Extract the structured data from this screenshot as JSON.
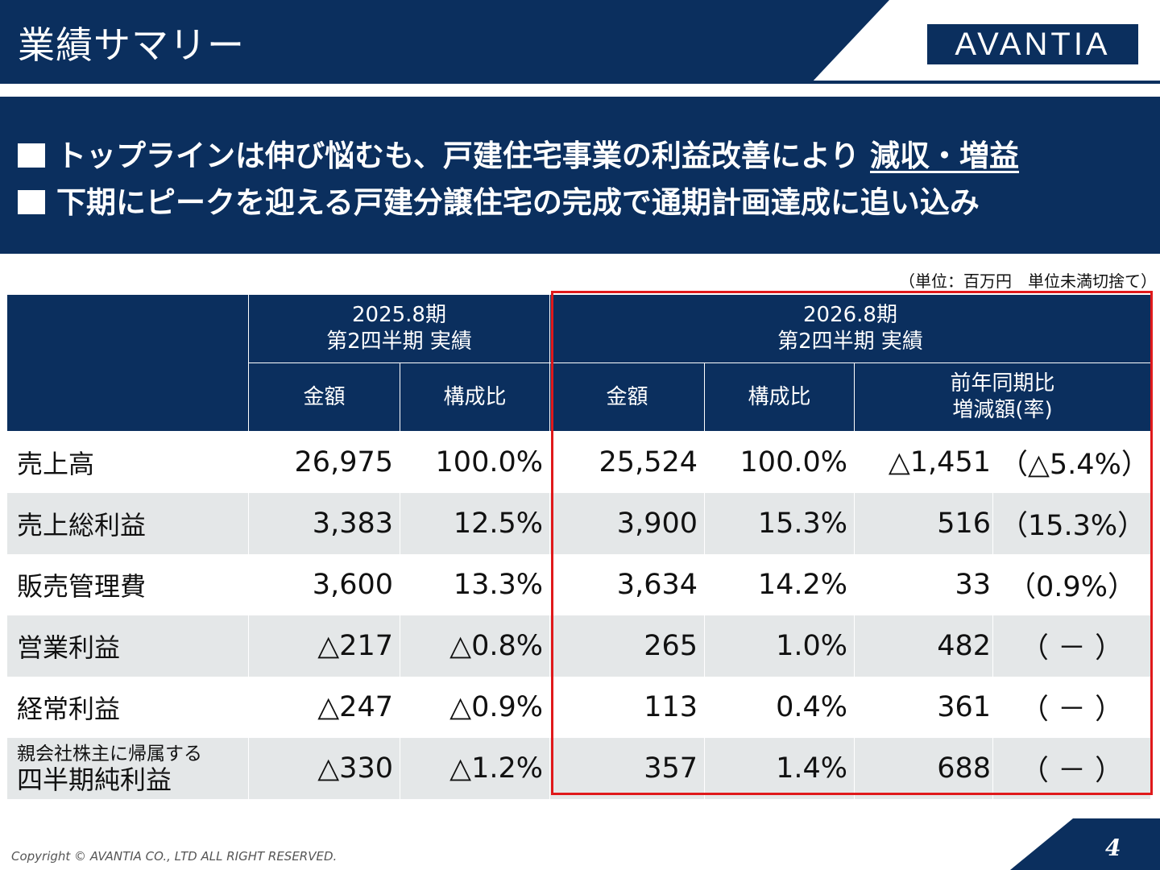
{
  "header": {
    "title": "業績サマリー",
    "logo_text": "AVANTIA",
    "brand_color": "#0b2f5e"
  },
  "summary": {
    "line1_text": "トップラインは伸び悩むも、戸建住宅事業の利益改善により ",
    "line1_emph": "減収・増益",
    "line2_text": "下期にピークを迎える戸建分譲住宅の完成で通期計画達成に追い込み"
  },
  "unit_note": "（単位：百万円　単位未満切捨て）",
  "table": {
    "period_prev": {
      "line1": "2025.8期",
      "line2": "第2四半期 実績"
    },
    "period_curr": {
      "line1": "2026.8期",
      "line2": "第2四半期 実績"
    },
    "col_amount": "金額",
    "col_ratio": "構成比",
    "col_yoy_line1": "前年同期比",
    "col_yoy_line2": "増減額(率)",
    "rows": [
      {
        "label": "売上高",
        "prev_amount": "26,975",
        "prev_ratio": "100.0%",
        "curr_amount": "25,524",
        "curr_ratio": "100.0%",
        "delta": "△1,451",
        "rate": "（△5.4%）"
      },
      {
        "label": "売上総利益",
        "prev_amount": "3,383",
        "prev_ratio": "12.5%",
        "curr_amount": "3,900",
        "curr_ratio": "15.3%",
        "delta": "516",
        "rate": "（15.3%）"
      },
      {
        "label": "販売管理費",
        "prev_amount": "3,600",
        "prev_ratio": "13.3%",
        "curr_amount": "3,634",
        "curr_ratio": "14.2%",
        "delta": "33",
        "rate": "（0.9%）"
      },
      {
        "label": "営業利益",
        "prev_amount": "△217",
        "prev_ratio": "△0.8%",
        "curr_amount": "265",
        "curr_ratio": "1.0%",
        "delta": "482",
        "rate": "（ － ）"
      },
      {
        "label": "経常利益",
        "prev_amount": "△247",
        "prev_ratio": "△0.9%",
        "curr_amount": "113",
        "curr_ratio": "0.4%",
        "delta": "361",
        "rate": "（ － ）"
      },
      {
        "label_small": "親会社株主に帰属する",
        "label": "四半期純利益",
        "prev_amount": "△330",
        "prev_ratio": "△1.2%",
        "curr_amount": "357",
        "curr_ratio": "1.4%",
        "delta": "688",
        "rate": "（ － ）"
      }
    ]
  },
  "footer": {
    "copyright": "Copyright © AVANTIA CO., LTD ALL RIGHT RESERVED.",
    "page_number": "4"
  }
}
